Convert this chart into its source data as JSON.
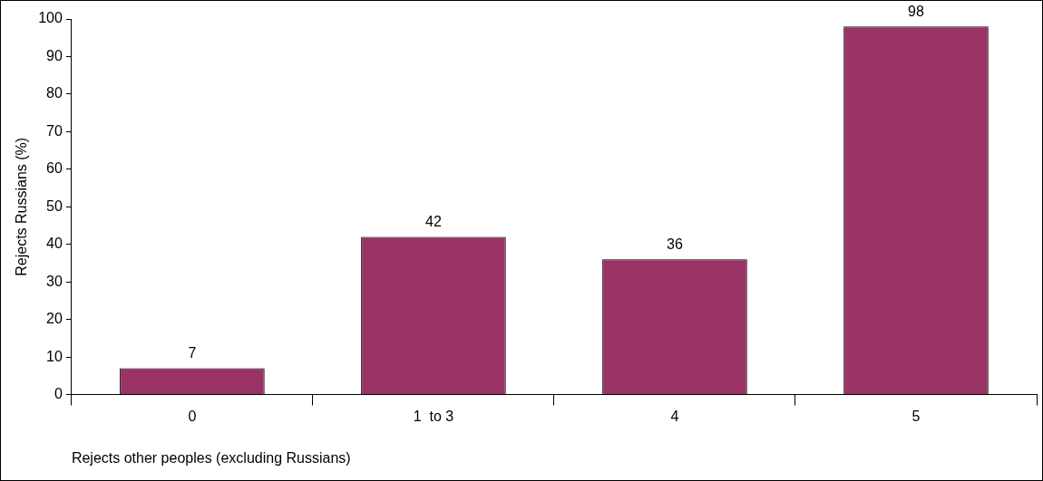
{
  "chart_data": {
    "type": "bar",
    "xlabel": "Rejects other peoples (excluding Russians)",
    "ylabel": "Rejects Russians (%)",
    "categories": [
      "0",
      "1  to 3",
      "4",
      "5"
    ],
    "values": [
      7,
      42,
      36,
      98
    ],
    "color": "#993366",
    "ylim": [
      0,
      100
    ],
    "yticks": [
      0,
      10,
      20,
      30,
      40,
      50,
      60,
      70,
      80,
      90,
      100
    ],
    "data_labels": true,
    "legend": false,
    "grid": false
  }
}
